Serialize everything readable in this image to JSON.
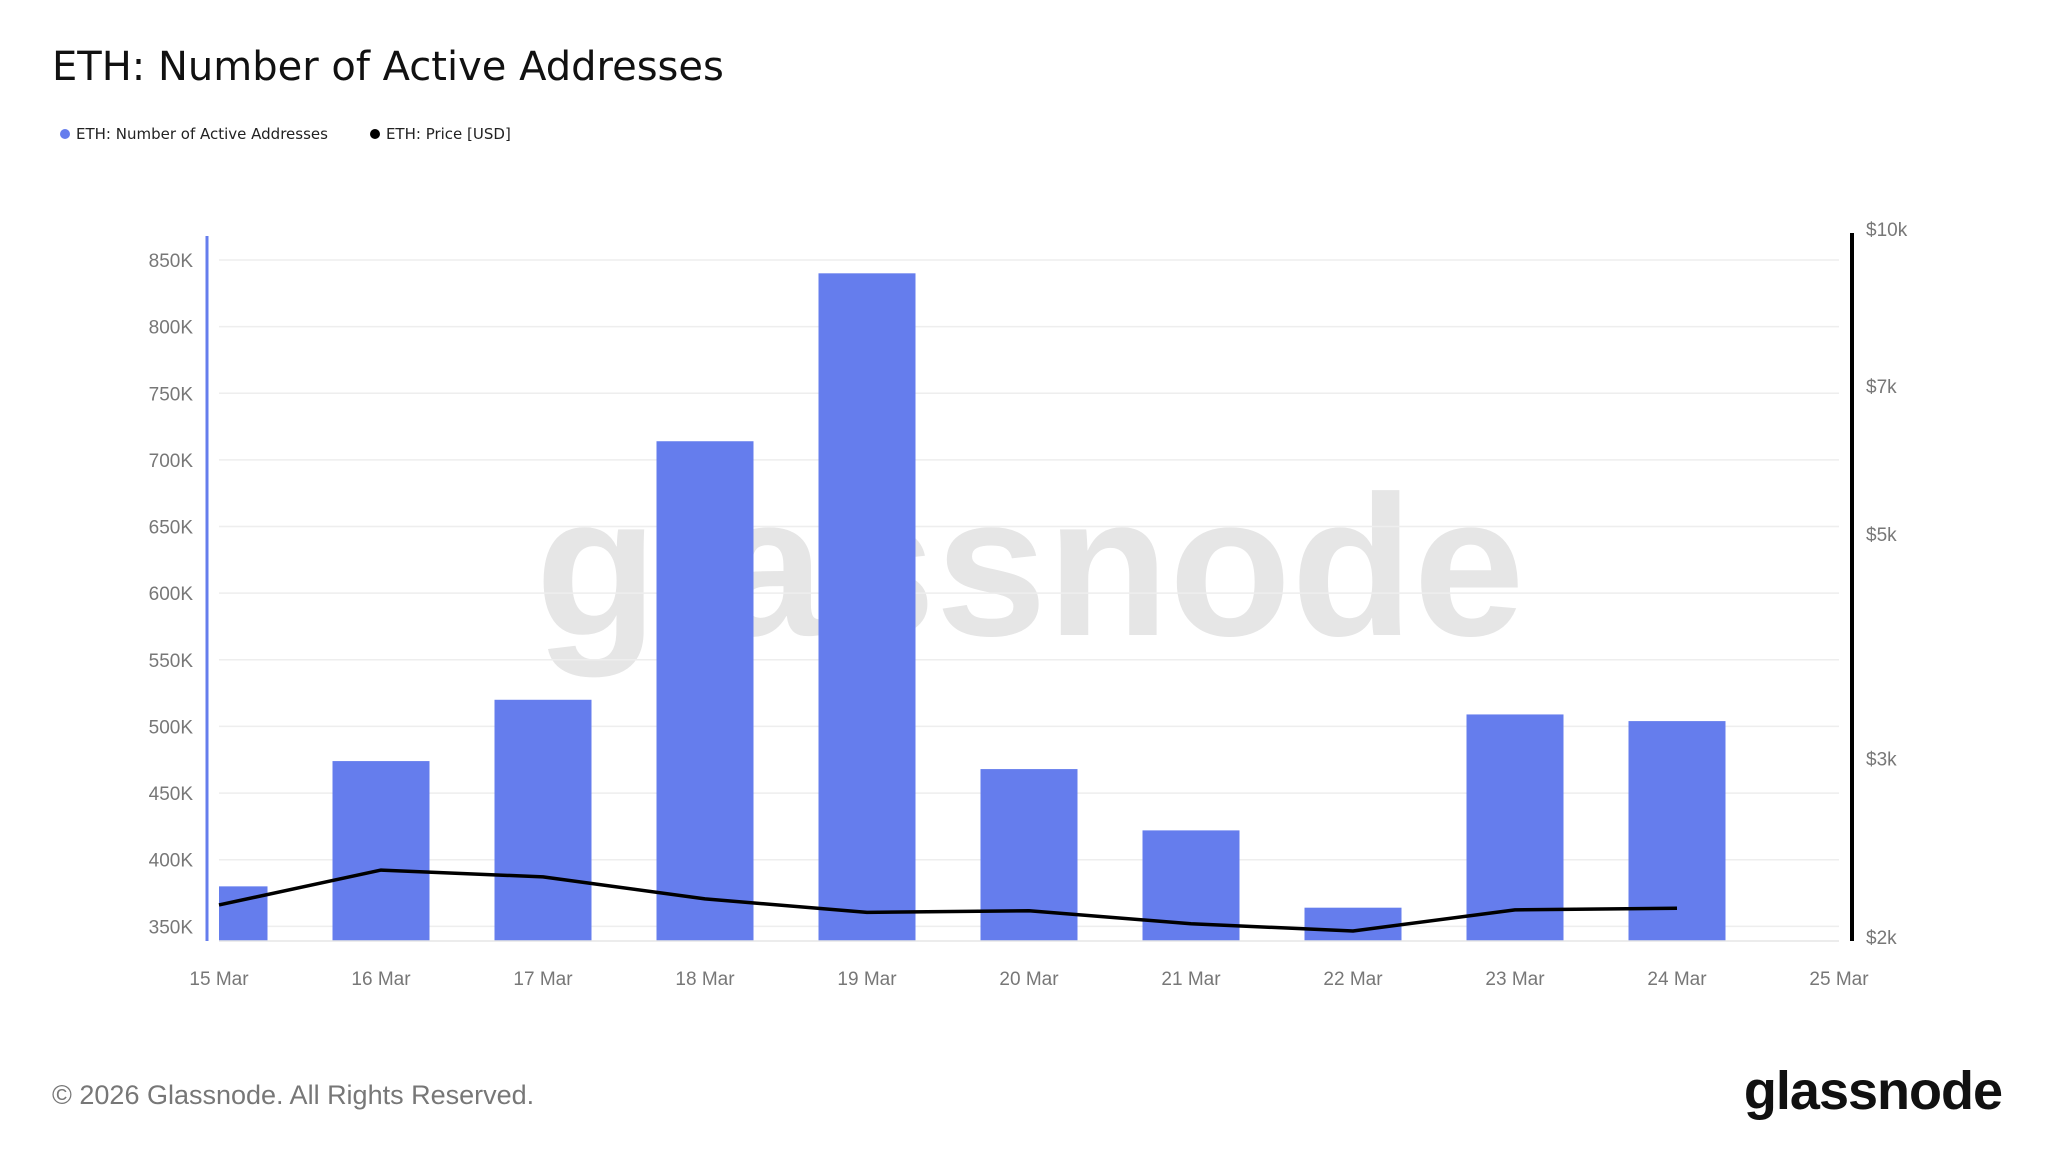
{
  "title": "ETH: Number of Active Addresses",
  "legend": [
    {
      "label": "ETH: Number of Active Addresses",
      "color": "#657ded"
    },
    {
      "label": "ETH: Price [USD]",
      "color": "#000000"
    }
  ],
  "footer": "© 2026 Glassnode. All Rights Reserved.",
  "logo": "glassnode",
  "watermark": "glassnode",
  "chart_data": {
    "type": "bar",
    "title": "ETH: Number of Active Addresses",
    "x_ticks": [
      "15 Mar",
      "16 Mar",
      "17 Mar",
      "18 Mar",
      "19 Mar",
      "20 Mar",
      "21 Mar",
      "22 Mar",
      "23 Mar",
      "24 Mar",
      "25 Mar"
    ],
    "categories": [
      "15 Mar",
      "16 Mar",
      "17 Mar",
      "18 Mar",
      "19 Mar",
      "20 Mar",
      "21 Mar",
      "22 Mar",
      "23 Mar",
      "24 Mar"
    ],
    "series": [
      {
        "name": "ETH: Number of Active Addresses",
        "type": "bar",
        "axis": "left",
        "color": "#657ded",
        "values": [
          380000,
          474000,
          520000,
          714000,
          840000,
          468000,
          422000,
          364000,
          509000,
          504000
        ]
      },
      {
        "name": "ETH: Price [USD]",
        "type": "line",
        "axis": "right",
        "color": "#000000",
        "values": [
          2156,
          2334,
          2298,
          2186,
          2120,
          2128,
          2066,
          2032,
          2132,
          2140
        ]
      }
    ],
    "y_left": {
      "ticks": [
        350000,
        400000,
        450000,
        500000,
        550000,
        600000,
        650000,
        700000,
        750000,
        800000,
        850000
      ],
      "tick_labels": [
        "350K",
        "400K",
        "450K",
        "500K",
        "550K",
        "600K",
        "650K",
        "700K",
        "750K",
        "800K",
        "850K"
      ],
      "range": [
        339000,
        868000
      ],
      "scale": "linear"
    },
    "y_right": {
      "ticks": [
        2000,
        3000,
        5000,
        7000,
        10000
      ],
      "tick_labels": [
        "$2k",
        "$3k",
        "$5k",
        "$7k",
        "$10k"
      ],
      "range": [
        2000,
        10000
      ],
      "scale": "log"
    },
    "grid": true,
    "legend_position": "top-left"
  }
}
